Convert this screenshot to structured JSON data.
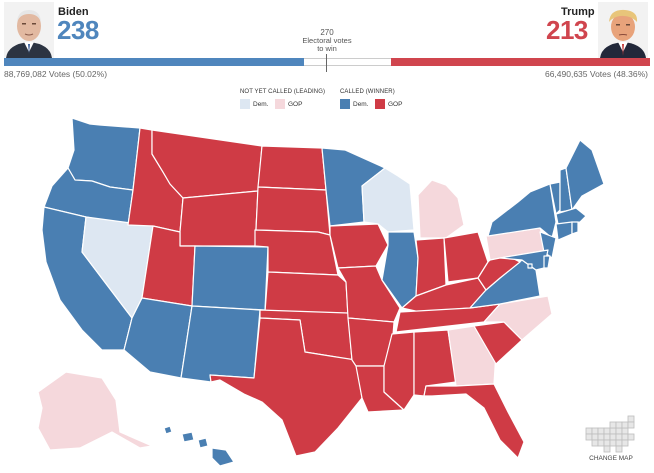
{
  "colors": {
    "dem_called": "#4a7fb2",
    "gop_called": "#cf3b45",
    "dem_leading": "#dde7f2",
    "gop_leading": "#f5d8dc",
    "bar_dem": "#4f86bd",
    "bar_gop": "#d0454e"
  },
  "header": {
    "biden": {
      "name": "Biden",
      "ev": "238",
      "votes_text": "88,769,082 Votes (50.02%)",
      "ev_value": 238
    },
    "trump": {
      "name": "Trump",
      "ev": "213",
      "votes_text": "66,490,635 Votes (48.36%)",
      "ev_value": 213
    },
    "center": {
      "number": "270",
      "line1": "Electoral votes",
      "line2": "to win"
    }
  },
  "legend": {
    "not_called_title": "NOT YET CALLED (LEADING)",
    "called_title": "CALLED (WINNER)",
    "dem": "Dem.",
    "gop": "GOP"
  },
  "states": {
    "WA": "dem_called",
    "OR": "dem_called",
    "CA": "dem_called",
    "NV": "dem_leading",
    "ID": "gop_called",
    "MT": "gop_called",
    "WY": "gop_called",
    "UT": "gop_called",
    "AZ": "dem_called",
    "CO": "dem_called",
    "NM": "dem_called",
    "ND": "gop_called",
    "SD": "gop_called",
    "NE": "gop_called",
    "KS": "gop_called",
    "OK": "gop_called",
    "TX": "gop_called",
    "MN": "dem_called",
    "IA": "gop_called",
    "MO": "gop_called",
    "AR": "gop_called",
    "LA": "gop_called",
    "WI": "dem_leading",
    "IL": "dem_called",
    "MI": "gop_leading",
    "IN": "gop_called",
    "OH": "gop_called",
    "KY": "gop_called",
    "TN": "gop_called",
    "MS": "gop_called",
    "AL": "gop_called",
    "GA": "gop_leading",
    "FL": "gop_called",
    "SC": "gop_called",
    "NC": "gop_leading",
    "VA": "dem_called",
    "WV": "gop_called",
    "PA": "gop_leading",
    "NY": "dem_called",
    "NJ": "dem_called",
    "MD": "dem_called",
    "DE": "dem_called",
    "DC": "dem_called",
    "VT": "dem_called",
    "NH": "dem_called",
    "ME": "dem_called",
    "MA": "dem_called",
    "CT": "dem_called",
    "RI": "dem_called",
    "AK": "gop_leading",
    "HI": "dem_called"
  },
  "change_map_label": "CHANGE MAP"
}
